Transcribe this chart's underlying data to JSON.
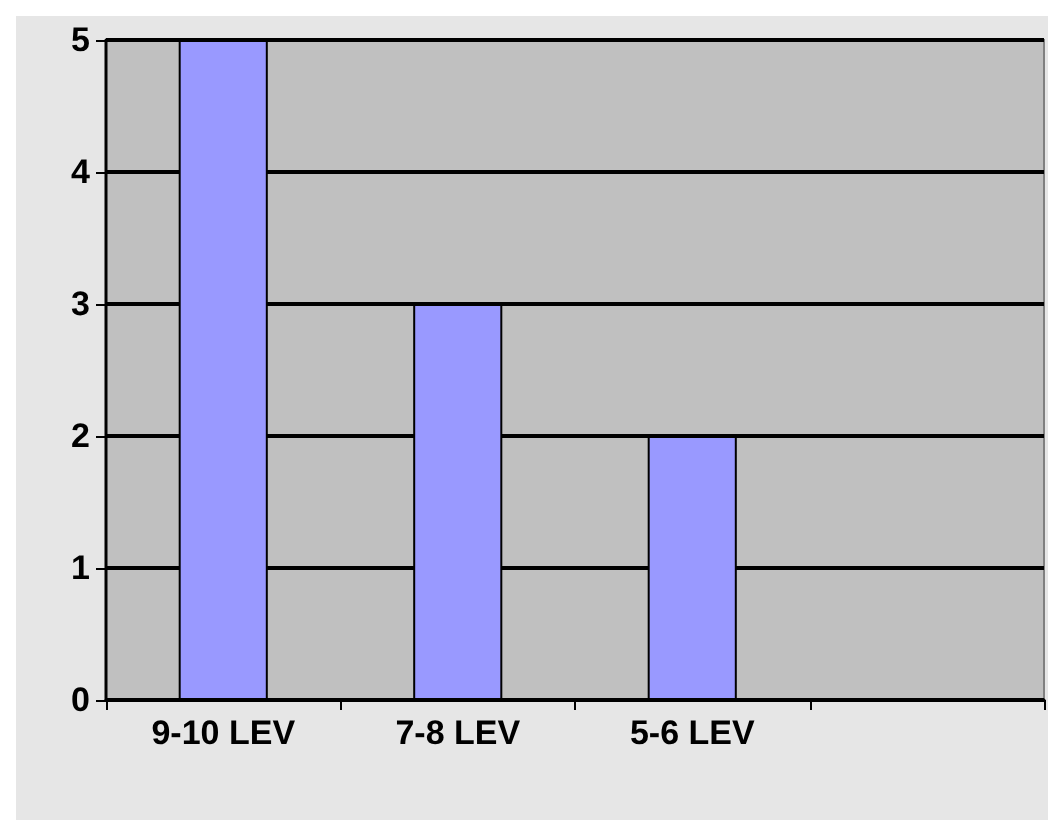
{
  "chart_data": {
    "type": "bar",
    "categories": [
      "9-10 LEV",
      "7-8 LEV",
      "5-6 LEV",
      null
    ],
    "values": [
      5,
      3,
      2,
      null
    ],
    "color": "#9999ff",
    "ylim": [
      0,
      5
    ],
    "yticks": [
      0,
      1,
      2,
      3,
      4,
      5
    ],
    "grid": "y"
  }
}
